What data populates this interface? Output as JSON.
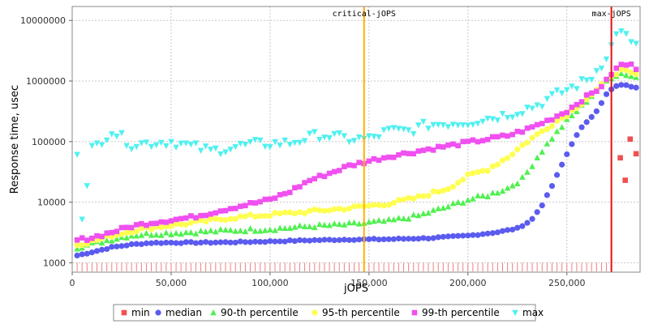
{
  "chart_data": {
    "type": "scatter",
    "title": "",
    "xlabel": "jOPS",
    "ylabel": "Response time, usec",
    "x_scale": "linear",
    "y_scale": "log",
    "xlim": [
      0,
      287000
    ],
    "ylim": [
      700,
      17000000
    ],
    "x_ticks": [
      0,
      50000,
      100000,
      150000,
      200000,
      250000
    ],
    "x_tick_labels": [
      "0",
      "50,000",
      "100,000",
      "150,000",
      "200,000",
      "250,000"
    ],
    "y_ticks": [
      1000,
      10000,
      100000,
      1000000,
      10000000
    ],
    "y_tick_labels": [
      "1000",
      "10000",
      "100000",
      "1000000",
      "10000000"
    ],
    "grid": true,
    "legend_position": "bottom",
    "markers": [
      {
        "name": "critical-jOPS",
        "x": 147500,
        "color": "#ffb000"
      },
      {
        "name": "max-jOPS",
        "x": 272500,
        "color": "#e01010"
      }
    ],
    "min_floor_value": 1000,
    "series": [
      {
        "name": "min",
        "color": "#f05050",
        "shape": "square",
        "points": [
          [
            277000,
            54000
          ],
          [
            279500,
            23000
          ],
          [
            282000,
            110000
          ],
          [
            285000,
            63000
          ]
        ]
      },
      {
        "name": "median",
        "color": "#5b5bf0",
        "shape": "circle",
        "curve": [
          [
            2500,
            1320
          ],
          [
            10000,
            1500
          ],
          [
            20000,
            1800
          ],
          [
            30000,
            2000
          ],
          [
            40000,
            2130
          ],
          [
            50000,
            2150
          ],
          [
            60000,
            2150
          ],
          [
            80000,
            2180
          ],
          [
            100000,
            2250
          ],
          [
            120000,
            2350
          ],
          [
            140000,
            2420
          ],
          [
            160000,
            2450
          ],
          [
            180000,
            2550
          ],
          [
            200000,
            2800
          ],
          [
            215000,
            3200
          ],
          [
            225000,
            3700
          ],
          [
            232000,
            5000
          ],
          [
            238000,
            9500
          ],
          [
            243000,
            20000
          ],
          [
            248000,
            45000
          ],
          [
            253000,
            100000
          ],
          [
            258000,
            180000
          ],
          [
            262000,
            250000
          ],
          [
            266000,
            350000
          ],
          [
            270000,
            600000
          ],
          [
            273000,
            750000
          ],
          [
            277000,
            880000
          ],
          [
            282000,
            820000
          ],
          [
            287000,
            780000
          ]
        ]
      },
      {
        "name": "90-th percentile",
        "color": "#50f050",
        "shape": "triangle-up",
        "curve": [
          [
            2500,
            1800
          ],
          [
            10000,
            2050
          ],
          [
            20000,
            2450
          ],
          [
            30000,
            2850
          ],
          [
            40000,
            3000
          ],
          [
            60000,
            3200
          ],
          [
            80000,
            3400
          ],
          [
            100000,
            3600
          ],
          [
            120000,
            4000
          ],
          [
            140000,
            4300
          ],
          [
            160000,
            4900
          ],
          [
            175000,
            6000
          ],
          [
            190000,
            8500
          ],
          [
            200000,
            11000
          ],
          [
            210000,
            13000
          ],
          [
            220000,
            17000
          ],
          [
            228000,
            25000
          ],
          [
            235000,
            55000
          ],
          [
            242000,
            110000
          ],
          [
            250000,
            220000
          ],
          [
            258000,
            400000
          ],
          [
            265000,
            700000
          ],
          [
            270000,
            1000000
          ],
          [
            273000,
            1200000
          ],
          [
            278000,
            1350000
          ],
          [
            283000,
            1200000
          ],
          [
            287000,
            1100000
          ]
        ]
      },
      {
        "name": "95-th percentile",
        "color": "#ffff50",
        "shape": "circle",
        "curve": [
          [
            2500,
            2000
          ],
          [
            10000,
            2250
          ],
          [
            20000,
            2800
          ],
          [
            30000,
            3350
          ],
          [
            40000,
            3800
          ],
          [
            60000,
            4500
          ],
          [
            80000,
            5500
          ],
          [
            100000,
            6200
          ],
          [
            120000,
            7000
          ],
          [
            140000,
            8000
          ],
          [
            160000,
            9500
          ],
          [
            175000,
            12000
          ],
          [
            190000,
            17000
          ],
          [
            200000,
            27000
          ],
          [
            210000,
            35000
          ],
          [
            220000,
            55000
          ],
          [
            230000,
            100000
          ],
          [
            240000,
            170000
          ],
          [
            250000,
            280000
          ],
          [
            258000,
            450000
          ],
          [
            265000,
            700000
          ],
          [
            270000,
            1000000
          ],
          [
            273000,
            1300000
          ],
          [
            278000,
            1500000
          ],
          [
            283000,
            1300000
          ],
          [
            287000,
            1200000
          ]
        ]
      },
      {
        "name": "99-th percentile",
        "color": "#f050f0",
        "shape": "square",
        "curve": [
          [
            2500,
            2350
          ],
          [
            10000,
            2600
          ],
          [
            20000,
            3200
          ],
          [
            30000,
            4000
          ],
          [
            40000,
            4600
          ],
          [
            60000,
            5600
          ],
          [
            80000,
            8000
          ],
          [
            100000,
            11000
          ],
          [
            110000,
            15000
          ],
          [
            120000,
            23000
          ],
          [
            130000,
            30000
          ],
          [
            140000,
            40000
          ],
          [
            150000,
            48000
          ],
          [
            160000,
            57000
          ],
          [
            170000,
            65000
          ],
          [
            180000,
            75000
          ],
          [
            190000,
            85000
          ],
          [
            200000,
            97000
          ],
          [
            210000,
            110000
          ],
          [
            220000,
            125000
          ],
          [
            230000,
            160000
          ],
          [
            240000,
            220000
          ],
          [
            250000,
            320000
          ],
          [
            258000,
            500000
          ],
          [
            265000,
            700000
          ],
          [
            270000,
            1000000
          ],
          [
            273000,
            1400000
          ],
          [
            278000,
            1900000
          ],
          [
            283000,
            1800000
          ],
          [
            287000,
            1500000
          ]
        ]
      },
      {
        "name": "max",
        "color": "#50f0f0",
        "shape": "triangle-down",
        "curve": [
          [
            2500,
            70000
          ],
          [
            5500,
            5200
          ],
          [
            10000,
            75000
          ],
          [
            20000,
            150000
          ],
          [
            30000,
            90000
          ],
          [
            50000,
            100000
          ],
          [
            70000,
            70000
          ],
          [
            90000,
            90000
          ],
          [
            110000,
            95000
          ],
          [
            125000,
            130000
          ],
          [
            140000,
            110000
          ],
          [
            150000,
            110000
          ],
          [
            160000,
            150000
          ],
          [
            170000,
            150000
          ],
          [
            180000,
            190000
          ],
          [
            200000,
            210000
          ],
          [
            220000,
            280000
          ],
          [
            235000,
            400000
          ],
          [
            245000,
            600000
          ],
          [
            255000,
            850000
          ],
          [
            262000,
            1100000
          ],
          [
            268000,
            2000000
          ],
          [
            273000,
            4000000
          ],
          [
            277000,
            8000000
          ],
          [
            282000,
            4200000
          ],
          [
            287000,
            3300000
          ]
        ]
      }
    ]
  }
}
